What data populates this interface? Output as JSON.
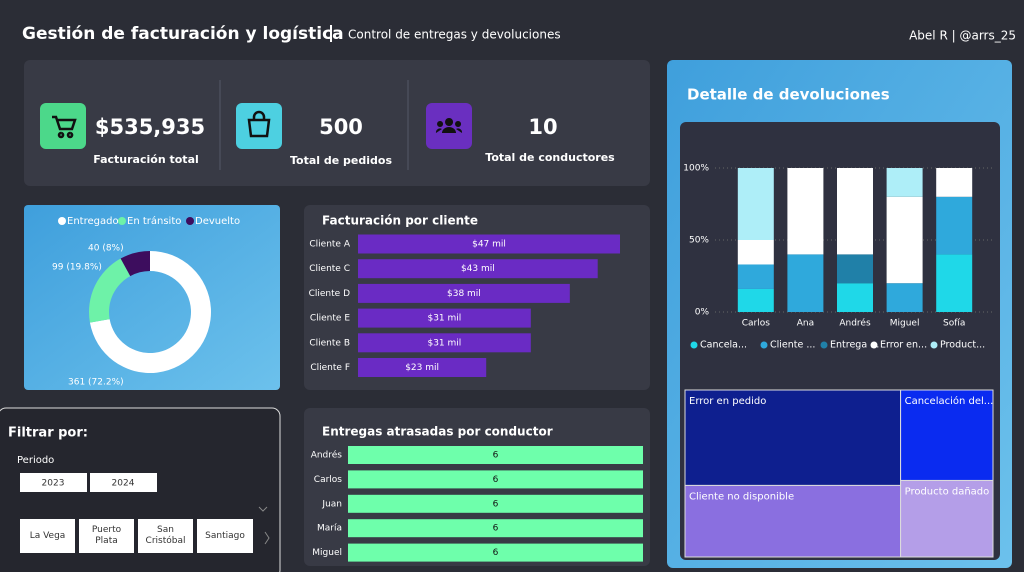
{
  "header": {
    "title": "Gestión de facturación y logística",
    "subtitle": "Control de entregas y devoluciones",
    "user": "Abel R | @arrs_25"
  },
  "kpis": [
    {
      "value": "$535,935",
      "label": "Facturación total"
    },
    {
      "value": "500",
      "label": "Total de pedidos"
    },
    {
      "value": "10",
      "label": "Total de conductores"
    }
  ],
  "chart_data": [
    {
      "type": "pie",
      "donut": true,
      "categories": [
        "Entregado",
        "En tránsito",
        "Devuelto"
      ],
      "values": [
        361,
        99,
        40
      ],
      "value_labels": [
        "361 (72.2%)",
        "99 (19.8%)",
        "40 (8%)"
      ],
      "colors": [
        "#ffffff",
        "#6ef2a8",
        "#3d0d5e"
      ]
    },
    {
      "type": "hbar",
      "title": "Facturación por cliente",
      "categories": [
        "Cliente A",
        "Cliente C",
        "Cliente D",
        "Cliente E",
        "Cliente B",
        "Cliente F"
      ],
      "values": [
        47,
        43,
        38,
        31,
        31,
        23
      ],
      "value_labels": [
        "$47 mil",
        "$43 mil",
        "$38 mil",
        "$31 mil",
        "$31 mil",
        "$23 mil"
      ],
      "color": "#6a2bc4"
    },
    {
      "type": "hbar",
      "title": "Entregas atrasadas por conductor",
      "categories": [
        "Andrés",
        "Carlos",
        "Juan",
        "María",
        "Miguel"
      ],
      "values": [
        6,
        6,
        6,
        6,
        6
      ],
      "color": "#6effab"
    },
    {
      "type": "stacked_bar",
      "title": "Detalle de devoluciones",
      "categories": [
        "Carlos",
        "Ana",
        "Andrés",
        "Miguel",
        "Sofía"
      ],
      "series": [
        {
          "name": "Cancela...",
          "color": "#1fd8e8",
          "values": [
            16,
            0,
            20,
            0,
            40
          ]
        },
        {
          "name": "Cliente ...",
          "color": "#2fa9dc",
          "values": [
            17,
            40,
            0,
            20,
            40
          ]
        },
        {
          "name": "Entrega ...",
          "color": "#2080a8",
          "values": [
            0,
            0,
            20,
            0,
            0
          ]
        },
        {
          "name": "Error en...",
          "color": "#ffffff",
          "values": [
            17,
            60,
            60,
            60,
            20
          ]
        },
        {
          "name": "Product...",
          "color": "#aeeef8",
          "values": [
            50,
            0,
            0,
            20,
            0
          ]
        }
      ],
      "ylim": [
        0,
        100
      ],
      "yticks": [
        {
          "value": 0,
          "label": "0%"
        },
        {
          "value": 50,
          "label": "50%"
        },
        {
          "value": 100,
          "label": "100%"
        }
      ],
      "grid": true
    },
    {
      "type": "treemap",
      "categories": [
        "Error en pedido",
        "Cliente no disponible",
        "Cancelación del...",
        "Producto dañado"
      ],
      "values": [
        16,
        12,
        6.5,
        5.5
      ],
      "colors": [
        "#0e1f8f",
        "#8a6fe0",
        "#0a2bf0",
        "#b49ee8"
      ]
    }
  ],
  "filters": {
    "title": "Filtrar por:",
    "period_label": "Periodo",
    "years": [
      "2023",
      "2024"
    ],
    "locations": [
      "La Vega",
      "Puerto Plata",
      "San Cristóbal",
      "Santiago"
    ]
  }
}
